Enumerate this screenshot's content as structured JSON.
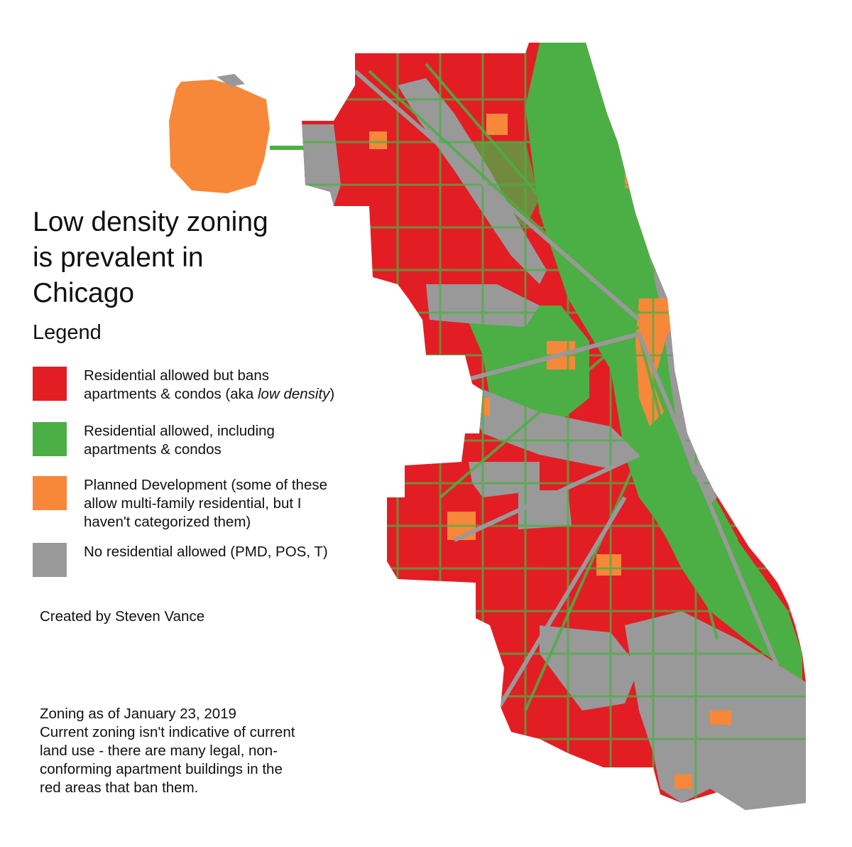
{
  "title_lines": [
    "Low density zoning",
    "is prevalent in",
    "Chicago"
  ],
  "legend": {
    "heading": "Legend",
    "items": [
      {
        "color": "#e31d24",
        "lines": [
          "Residential allowed but bans",
          "apartments & condos (aka "
        ],
        "emphasis": "low density",
        "suffix": ")"
      },
      {
        "color": "#4caf45",
        "lines": [
          "Residential allowed, including",
          "apartments & condos"
        ]
      },
      {
        "color": "#f7883a",
        "lines": [
          "Planned Development (some of these",
          "allow multi-family residential, but I",
          "haven't categorized them)"
        ]
      },
      {
        "color": "#999999",
        "lines": [
          "No residential allowed (PMD, POS, T)"
        ]
      }
    ]
  },
  "credit": "Created by Steven Vance",
  "note_lines": [
    "Zoning as of January 23, 2019",
    "Current zoning isn't indicative of current",
    "land use - there are many legal, non-",
    "conforming apartment buildings in the",
    "red areas that ban them."
  ],
  "colors": {
    "low_density": "#e31d24",
    "multi_family": "#4caf45",
    "planned_development": "#f7883a",
    "no_residential": "#999999",
    "background": "#ffffff"
  }
}
